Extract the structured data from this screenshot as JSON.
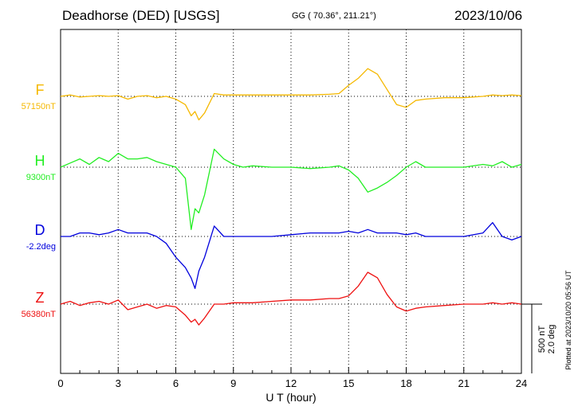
{
  "header": {
    "station": "Deadhorse (DED)  [USGS]",
    "coords": "GG ( 70.36°, 211.21°)",
    "date": "2023/10/06"
  },
  "footer_note": "Plotted at 2023/10/20 05:56 UT",
  "scale_bar": {
    "line1": "500 nT",
    "line2": "2.0 deg"
  },
  "chart_data": {
    "type": "line",
    "title": "Deadhorse (DED)  [USGS]",
    "xlabel": "U T (hour)",
    "ylabel": "",
    "xlim": [
      0,
      24
    ],
    "x_ticks": [
      "0",
      "3",
      "6",
      "9",
      "12",
      "15",
      "18",
      "21",
      "24"
    ],
    "grid": true,
    "scale": "500 nT per scale bar (D: 2.0 deg)",
    "x": [
      0,
      0.5,
      1,
      1.5,
      2,
      2.5,
      3,
      3.5,
      4,
      4.5,
      5,
      5.5,
      6,
      6.5,
      6.8,
      7,
      7.2,
      7.5,
      8,
      8.5,
      9,
      9.5,
      10,
      11,
      12,
      13,
      14,
      14.5,
      15,
      15.5,
      16,
      16.5,
      17,
      17.5,
      18,
      18.5,
      19,
      20,
      21,
      22,
      22.5,
      23,
      23.5,
      24
    ],
    "series": [
      {
        "name": "F",
        "baseline": "57150nT",
        "color": "#f5b800",
        "values": [
          0,
          10,
          -5,
          0,
          5,
          0,
          5,
          -20,
          0,
          5,
          -10,
          0,
          -20,
          -60,
          -140,
          -110,
          -170,
          -120,
          20,
          10,
          10,
          10,
          10,
          10,
          10,
          10,
          15,
          20,
          80,
          130,
          200,
          160,
          50,
          -60,
          -80,
          -30,
          -20,
          -10,
          -10,
          0,
          10,
          5,
          10,
          5
        ]
      },
      {
        "name": "H",
        "baseline": "9300nT",
        "color": "#22ee22",
        "values": [
          0,
          30,
          60,
          20,
          70,
          40,
          100,
          60,
          60,
          70,
          40,
          20,
          0,
          -80,
          -450,
          -300,
          -330,
          -200,
          130,
          60,
          20,
          0,
          10,
          0,
          0,
          -10,
          0,
          10,
          -20,
          -80,
          -180,
          -150,
          -110,
          -60,
          0,
          40,
          0,
          0,
          0,
          20,
          10,
          40,
          0,
          20
        ]
      },
      {
        "name": "D",
        "baseline": "-2.2deg",
        "color": "#0000dd",
        "values": [
          0,
          0,
          0.1,
          0.1,
          0.05,
          0.1,
          0.2,
          0.1,
          0.1,
          0.1,
          0,
          -0.2,
          -0.6,
          -0.9,
          -1.2,
          -1.5,
          -1.0,
          -0.6,
          0.3,
          0,
          0,
          0,
          0,
          0,
          0.05,
          0.1,
          0.1,
          0.1,
          0.15,
          0.1,
          0.2,
          0.1,
          0.1,
          0.1,
          0.05,
          0.1,
          0,
          0,
          0,
          0.1,
          0.4,
          0,
          -0.1,
          0
        ]
      },
      {
        "name": "Z",
        "baseline": "56380nT",
        "color": "#ee1111",
        "values": [
          0,
          20,
          -10,
          10,
          20,
          0,
          30,
          -40,
          -20,
          0,
          -30,
          -10,
          -20,
          -80,
          -130,
          -110,
          -150,
          -100,
          0,
          0,
          10,
          10,
          10,
          20,
          30,
          30,
          40,
          40,
          60,
          130,
          230,
          190,
          70,
          -20,
          -50,
          -30,
          -20,
          -10,
          0,
          0,
          10,
          0,
          10,
          0
        ]
      }
    ]
  }
}
